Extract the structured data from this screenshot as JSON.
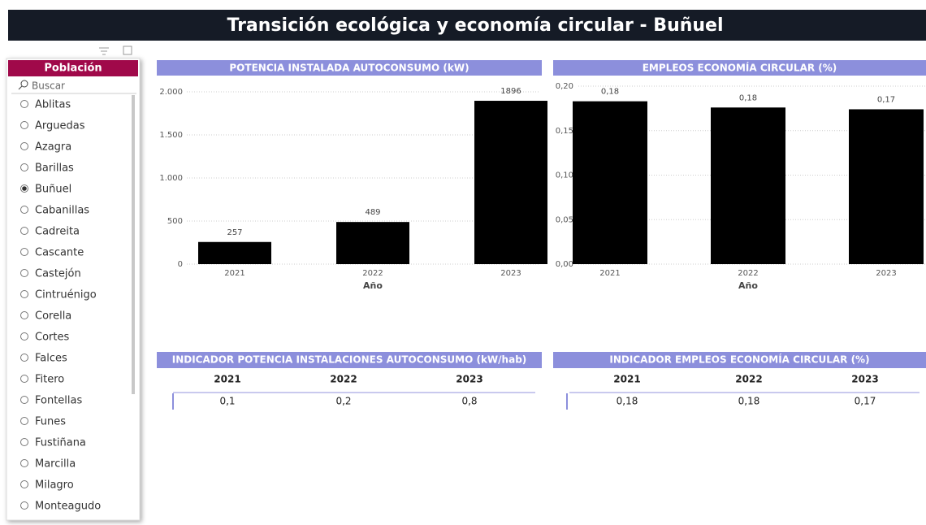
{
  "header": {
    "title": "Transición ecológica y economía circular - Buñuel"
  },
  "slicer": {
    "title": "Población",
    "search": "Buscar",
    "items": [
      "Ablitas",
      "Arguedas",
      "Azagra",
      "Barillas",
      "Buñuel",
      "Cabanillas",
      "Cadreita",
      "Cascante",
      "Castejón",
      "Cintruénigo",
      "Corella",
      "Cortes",
      "Falces",
      "Fitero",
      "Fontellas",
      "Funes",
      "Fustiñana",
      "Marcilla",
      "Milagro",
      "Monteagudo"
    ],
    "selected": 4
  },
  "chart_data": [
    {
      "type": "bar",
      "title": "POTENCIA INSTALADA AUTOCONSUMO (kW)",
      "x_label": "Año",
      "categories": [
        "2021",
        "2022",
        "2023"
      ],
      "values": [
        257,
        489,
        1896
      ],
      "color": "#000000",
      "ylim": [
        0,
        2000
      ],
      "yticks": [
        0,
        500,
        {
          "value": 1000,
          "label": "1.000"
        },
        {
          "value": 1500,
          "label": "1.500"
        },
        {
          "value": 2000,
          "label": "2.000"
        }
      ],
      "grid": true
    },
    {
      "type": "bar",
      "title": "EMPLEOS ECONOMÍA CIRCULAR (%)",
      "x_label": "Año",
      "categories": [
        "2021",
        "2022",
        "2023"
      ],
      "values": [
        0.183,
        0.176,
        0.174
      ],
      "value_labels": [
        "0,18",
        "0,18",
        "0,17"
      ],
      "color": "#000000",
      "ylim": [
        0,
        0.2
      ],
      "yticks": [
        {
          "value": 0,
          "label": "0,00"
        },
        {
          "value": 0.05,
          "label": "0,05"
        },
        {
          "value": 0.1,
          "label": "0,10"
        },
        {
          "value": 0.15,
          "label": "0,15"
        },
        {
          "value": 0.2,
          "label": "0,20"
        }
      ],
      "grid": true
    }
  ],
  "tables": [
    {
      "title": "INDICADOR POTENCIA INSTALACIONES AUTOCONSUMO (kW/hab)",
      "columns": [
        "2021",
        "2022",
        "2023"
      ],
      "rows": [
        [
          "0,1",
          "0,2",
          "0,8"
        ]
      ]
    },
    {
      "title": "INDICADOR EMPLEOS ECONOMÍA CIRCULAR (%)",
      "columns": [
        "2021",
        "2022",
        "2023"
      ],
      "rows": [
        [
          "0,18",
          "0,18",
          "0,17"
        ]
      ]
    }
  ]
}
